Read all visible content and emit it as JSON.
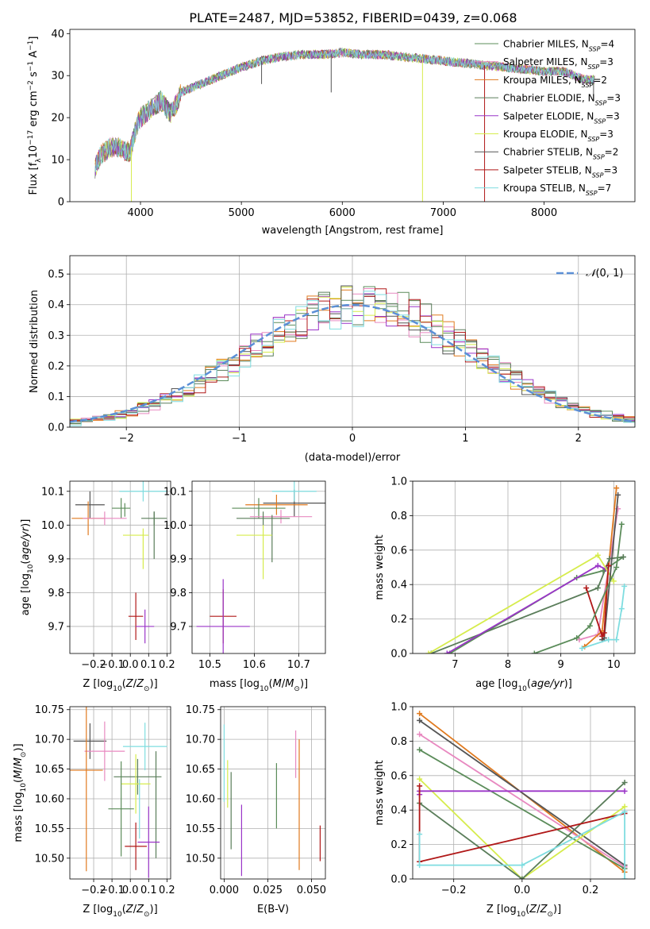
{
  "figure": {
    "title": "PLATE=2487, MJD=53852, FIBERID=0439, z=0.068"
  },
  "models": [
    {
      "name": "Chabrier MILES, N",
      "sub": "SSP",
      "count": "=4",
      "color": "#5b8c5a"
    },
    {
      "name": "Salpeter MILES, N",
      "sub": "SSP",
      "count": "=3",
      "color": "#e889c0"
    },
    {
      "name": "Kroupa MILES, N",
      "sub": "SSP",
      "count": "=2",
      "color": "#e07a1f"
    },
    {
      "name": "Chabrier ELODIE, N",
      "sub": "SSP",
      "count": "=3",
      "color": "#5a7d5a"
    },
    {
      "name": "Salpeter ELODIE, N",
      "sub": "SSP",
      "count": "=3",
      "color": "#9a35c8"
    },
    {
      "name": "Kroupa ELODIE, N",
      "sub": "SSP",
      "count": "=3",
      "color": "#d6ec4c"
    },
    {
      "name": "Chabrier STELIB, N",
      "sub": "SSP",
      "count": "=2",
      "color": "#555555"
    },
    {
      "name": "Salpeter STELIB, N",
      "sub": "SSP",
      "count": "=3",
      "color": "#b01818"
    },
    {
      "name": "Kroupa STELIB, N",
      "sub": "SSP",
      "count": "=7",
      "color": "#7fdde0"
    }
  ],
  "chart_data": [
    {
      "id": "spectrum",
      "type": "line",
      "title": "PLATE=2487, MJD=53852, FIBERID=0439, z=0.068",
      "xlabel": "wavelength [Angstrom, rest frame]",
      "ylabel": "Flux [f",
      "xlim": [
        3300,
        8900
      ],
      "ylim": [
        0,
        41
      ],
      "xticks": [
        4000,
        5000,
        6000,
        7000,
        8000
      ],
      "yticks": [
        0,
        10,
        20,
        30,
        40
      ],
      "grid": false,
      "legend": "top-right",
      "continuum": {
        "x": [
          3550,
          3600,
          3700,
          3800,
          3850,
          3900,
          3950,
          4000,
          4100,
          4200,
          4300,
          4350,
          4400,
          4500,
          4600,
          4700,
          4800,
          4900,
          5000,
          5200,
          5400,
          5600,
          5800,
          6000,
          6200,
          6400,
          6600,
          6800,
          7000,
          7200,
          7400,
          7600,
          7800,
          8000,
          8200,
          8400,
          8500
        ],
        "y": [
          8,
          11,
          13,
          13,
          12,
          12,
          17,
          20,
          22,
          24,
          21,
          23,
          26,
          27,
          28,
          29,
          30,
          31,
          32,
          33.5,
          34.5,
          35,
          35,
          35.5,
          35,
          35,
          34.5,
          34,
          33.5,
          33,
          32.5,
          32,
          31.5,
          31,
          31,
          29,
          29
        ]
      },
      "dips": [
        {
          "x": 3910,
          "y": 0
        },
        {
          "x": 5200,
          "y": 28
        },
        {
          "x": 5890,
          "y": 26
        },
        {
          "x": 6795,
          "y": 0
        },
        {
          "x": 7410,
          "y": 0
        },
        {
          "x": 8490,
          "y": 24
        }
      ]
    },
    {
      "id": "residual-histogram",
      "type": "bar",
      "xlabel": "(data-model)/error",
      "ylabel": "Normed distribution",
      "xlim": [
        -2.5,
        2.5
      ],
      "ylim": [
        0,
        0.56
      ],
      "xticks": [
        -2,
        -1,
        0,
        1,
        2
      ],
      "yticks": [
        0,
        0.1,
        0.2,
        0.3,
        0.4,
        0.5
      ],
      "grid": true,
      "legend": "top-right",
      "reference_curve": {
        "name": "N(0,1)",
        "color": "#5b8fd6",
        "dash": true
      },
      "bin_width": 0.1,
      "bin_start": -2.5
    },
    {
      "id": "age-vs-Z",
      "type": "scatter",
      "xlabel": "Z [log",
      "ylabel": "age  [log",
      "xlim": [
        -0.33,
        0.22
      ],
      "ylim": [
        9.62,
        10.13
      ],
      "xticks": [
        -0.2,
        -0.1,
        0.0,
        0.1,
        0.2
      ],
      "yticks": [
        9.7,
        9.8,
        9.9,
        10.0,
        10.1
      ],
      "grid": true,
      "points": [
        {
          "x": -0.22,
          "y": 10.06,
          "xerr": 0.08,
          "yerr": 0.04,
          "model": 6
        },
        {
          "x": -0.23,
          "y": 10.02,
          "xerr": 0.09,
          "yerr": 0.05,
          "model": 2
        },
        {
          "x": -0.05,
          "y": 10.05,
          "xerr": 0.05,
          "yerr": 0.03,
          "model": 0
        },
        {
          "x": 0.07,
          "y": 10.1,
          "xerr": 0.13,
          "yerr": 0.03,
          "model": 8
        },
        {
          "x": -0.14,
          "y": 10.02,
          "xerr": 0.12,
          "yerr": 0.02,
          "model": 1
        },
        {
          "x": 0.13,
          "y": 10.02,
          "xerr": 0.07,
          "yerr": 0.02,
          "model": 3
        },
        {
          "x": 0.13,
          "y": 9.97,
          "xerr": 0.0,
          "yerr": 0.07,
          "model": 3
        },
        {
          "x": 0.03,
          "y": 9.97,
          "xerr": 0.07,
          "yerr": 0.0,
          "model": 5
        },
        {
          "x": 0.07,
          "y": 9.93,
          "xerr": 0.0,
          "yerr": 0.06,
          "model": 5
        },
        {
          "x": -0.03,
          "y": 10.045,
          "xerr": 0.0,
          "yerr": 0.02,
          "model": 0
        },
        {
          "x": 0.03,
          "y": 9.73,
          "xerr": 0.04,
          "yerr": 0.07,
          "model": 7
        },
        {
          "x": 0.08,
          "y": 9.7,
          "xerr": 0.05,
          "yerr": 0.05,
          "model": 4
        }
      ]
    },
    {
      "id": "age-vs-mass",
      "type": "scatter",
      "xlabel": "mass [log",
      "ylabel": "",
      "xlim": [
        10.46,
        10.76
      ],
      "ylim": [
        9.62,
        10.13
      ],
      "xticks": [
        10.5,
        10.6,
        10.7
      ],
      "yticks": [
        9.7,
        9.8,
        9.9,
        10.0,
        10.1
      ],
      "grid": true,
      "points": [
        {
          "x": 10.69,
          "y": 10.065,
          "xerr": 0.07,
          "yerr": 0.04,
          "model": 6
        },
        {
          "x": 10.65,
          "y": 10.06,
          "xerr": 0.07,
          "yerr": 0.03,
          "model": 2
        },
        {
          "x": 10.61,
          "y": 10.05,
          "xerr": 0.06,
          "yerr": 0.03,
          "model": 0
        },
        {
          "x": 10.69,
          "y": 10.1,
          "xerr": 0.05,
          "yerr": 0.03,
          "model": 8
        },
        {
          "x": 10.66,
          "y": 10.025,
          "xerr": 0.07,
          "yerr": 0.02,
          "model": 1
        },
        {
          "x": 10.62,
          "y": 10.02,
          "xerr": 0.06,
          "yerr": 0.02,
          "model": 3
        },
        {
          "x": 10.64,
          "y": 9.96,
          "xerr": 0.0,
          "yerr": 0.07,
          "model": 3
        },
        {
          "x": 10.6,
          "y": 9.97,
          "xerr": 0.04,
          "yerr": 0.0,
          "model": 5
        },
        {
          "x": 10.62,
          "y": 9.92,
          "xerr": 0.0,
          "yerr": 0.08,
          "model": 5
        },
        {
          "x": 10.53,
          "y": 9.73,
          "xerr": 0.03,
          "yerr": 0.08,
          "model": 7
        },
        {
          "x": 10.53,
          "y": 9.7,
          "xerr": 0.06,
          "yerr": 0.14,
          "model": 4
        }
      ]
    },
    {
      "id": "massweight-vs-age",
      "type": "line",
      "xlabel": "age  [log",
      "ylabel": "mass weight",
      "xlim": [
        6.2,
        10.4
      ],
      "ylim": [
        0,
        1
      ],
      "xticks": [
        7,
        8,
        9,
        10
      ],
      "yticks": [
        0,
        0.2,
        0.4,
        0.6,
        0.8,
        1.0
      ],
      "grid": true,
      "series": [
        {
          "model": 0,
          "x": [
            6.9,
            9.3,
            9.8,
            10.18
          ],
          "y": [
            0.0,
            0.44,
            0.48,
            0.56
          ]
        },
        {
          "model": 1,
          "x": [
            9.35,
            9.7,
            10.08
          ],
          "y": [
            0.08,
            0.11,
            0.84
          ]
        },
        {
          "model": 2,
          "x": [
            9.45,
            9.78,
            10.05
          ],
          "y": [
            0.04,
            0.13,
            0.96
          ]
        },
        {
          "model": 3,
          "x": [
            6.55,
            9.7,
            9.92,
            10.18
          ],
          "y": [
            0.0,
            0.38,
            0.55,
            0.56
          ]
        },
        {
          "model": 4,
          "x": [
            6.85,
            9.7,
            9.85
          ],
          "y": [
            0.0,
            0.51,
            0.49
          ]
        },
        {
          "model": 5,
          "x": [
            6.5,
            9.7,
            10.0
          ],
          "y": [
            0.0,
            0.57,
            0.42
          ]
        },
        {
          "model": 6,
          "x": [
            9.78,
            9.82,
            10.08
          ],
          "y": [
            0.08,
            0.09,
            0.92
          ]
        },
        {
          "model": 7,
          "x": [
            9.48,
            9.78,
            9.82,
            9.9
          ],
          "y": [
            0.38,
            0.1,
            0.12,
            0.51
          ]
        },
        {
          "model": 8,
          "x": [
            9.4,
            9.9,
            10.05,
            10.15,
            10.2
          ],
          "y": [
            0.03,
            0.08,
            0.08,
            0.26,
            0.39
          ]
        },
        {
          "model": 0,
          "x": [
            8.5,
            9.3,
            9.55,
            10.05,
            10.15
          ],
          "y": [
            0.0,
            0.09,
            0.16,
            0.5,
            0.75
          ]
        }
      ]
    },
    {
      "id": "mass-vs-Z",
      "type": "scatter",
      "xlabel": "Z [log",
      "ylabel": "mass [log",
      "xlim": [
        -0.33,
        0.22
      ],
      "ylim": [
        10.465,
        10.755
      ],
      "xticks": [
        -0.2,
        -0.1,
        0.0,
        0.1,
        0.2
      ],
      "yticks": [
        10.5,
        10.55,
        10.6,
        10.65,
        10.7,
        10.75
      ],
      "grid": true,
      "points": [
        {
          "x": -0.22,
          "y": 10.697,
          "xerr": 0.09,
          "yerr": 0.03,
          "model": 6
        },
        {
          "x": -0.14,
          "y": 10.68,
          "xerr": 0.11,
          "yerr": 0.05,
          "model": 1
        },
        {
          "x": 0.08,
          "y": 10.688,
          "xerr": 0.12,
          "yerr": 0.04,
          "model": 8
        },
        {
          "x": -0.24,
          "y": 10.648,
          "xerr": 0.09,
          "yerr": 0.17,
          "model": 2
        },
        {
          "x": 0.04,
          "y": 10.637,
          "xerr": 0.13,
          "yerr": 0.03,
          "model": 3
        },
        {
          "x": 0.03,
          "y": 10.625,
          "xerr": 0.08,
          "yerr": 0.05,
          "model": 5
        },
        {
          "x": 0.14,
          "y": 10.59,
          "xerr": 0.0,
          "yerr": 0.09,
          "model": 3
        },
        {
          "x": -0.05,
          "y": 10.583,
          "xerr": 0.07,
          "yerr": 0.08,
          "model": 0
        },
        {
          "x": 0.05,
          "y": 10.583,
          "xerr": 0.0,
          "yerr": 0.05,
          "model": 8
        },
        {
          "x": 0.1,
          "y": 10.527,
          "xerr": 0.06,
          "yerr": 0.06,
          "model": 4
        },
        {
          "x": 0.03,
          "y": 10.52,
          "xerr": 0.06,
          "yerr": 0.04,
          "model": 7
        }
      ]
    },
    {
      "id": "mass-vs-EBV",
      "type": "scatter",
      "xlabel": "E(B-V)",
      "ylabel": "",
      "xlim": [
        -0.002,
        0.058
      ],
      "ylim": [
        10.465,
        10.755
      ],
      "xticks": [
        0.0,
        0.025,
        0.05
      ],
      "yticks": [
        10.5,
        10.55,
        10.6,
        10.65,
        10.7,
        10.75
      ],
      "grid": true,
      "points": [
        {
          "x": 0.0,
          "y": 10.66,
          "yerr": 0.065,
          "model": 8
        },
        {
          "x": 0.002,
          "y": 10.625,
          "yerr": 0.04,
          "model": 5
        },
        {
          "x": 0.004,
          "y": 10.58,
          "yerr": 0.065,
          "model": 3
        },
        {
          "x": 0.01,
          "y": 10.53,
          "yerr": 0.06,
          "model": 4
        },
        {
          "x": 0.03,
          "y": 10.605,
          "yerr": 0.055,
          "model": 0
        },
        {
          "x": 0.041,
          "y": 10.675,
          "yerr": 0.04,
          "model": 1
        },
        {
          "x": 0.043,
          "y": 10.59,
          "yerr": 0.11,
          "model": 2
        },
        {
          "x": 0.055,
          "y": 10.525,
          "yerr": 0.03,
          "model": 7
        }
      ]
    },
    {
      "id": "massweight-vs-Z",
      "type": "line",
      "xlabel": "Z [log",
      "ylabel": "mass weight",
      "xlim": [
        -0.32,
        0.33
      ],
      "ylim": [
        0,
        1
      ],
      "xticks": [
        -0.2,
        0.0,
        0.2
      ],
      "yticks": [
        0,
        0.2,
        0.4,
        0.6,
        0.8,
        1.0
      ],
      "grid": true,
      "series": [
        {
          "model": 2,
          "x": [
            -0.3,
            0.3
          ],
          "y": [
            0.96,
            0.04
          ]
        },
        {
          "model": 6,
          "x": [
            -0.3,
            0.3
          ],
          "y": [
            0.92,
            0.08
          ]
        },
        {
          "model": 1,
          "x": [
            -0.3,
            0.3
          ],
          "y": [
            0.84,
            0.07
          ]
        },
        {
          "model": 0,
          "x": [
            -0.3,
            0.3
          ],
          "y": [
            0.75,
            0.06
          ]
        },
        {
          "model": 5,
          "x": [
            -0.3,
            0.0,
            0.3
          ],
          "y": [
            0.58,
            0.0,
            0.42
          ]
        },
        {
          "model": 4,
          "x": [
            -0.3,
            -0.3,
            0.3
          ],
          "y": [
            0.49,
            0.51,
            0.51
          ]
        },
        {
          "model": 3,
          "x": [
            -0.3,
            0.0,
            0.3
          ],
          "y": [
            0.44,
            0.0,
            0.56
          ]
        },
        {
          "model": 7,
          "x": [
            -0.3,
            -0.3,
            0.3
          ],
          "y": [
            0.54,
            0.1,
            0.38
          ]
        },
        {
          "model": 8,
          "x": [
            -0.3,
            -0.3,
            0.0,
            0.3,
            0.3
          ],
          "y": [
            0.26,
            0.08,
            0.08,
            0.39,
            0.0
          ]
        }
      ]
    }
  ]
}
